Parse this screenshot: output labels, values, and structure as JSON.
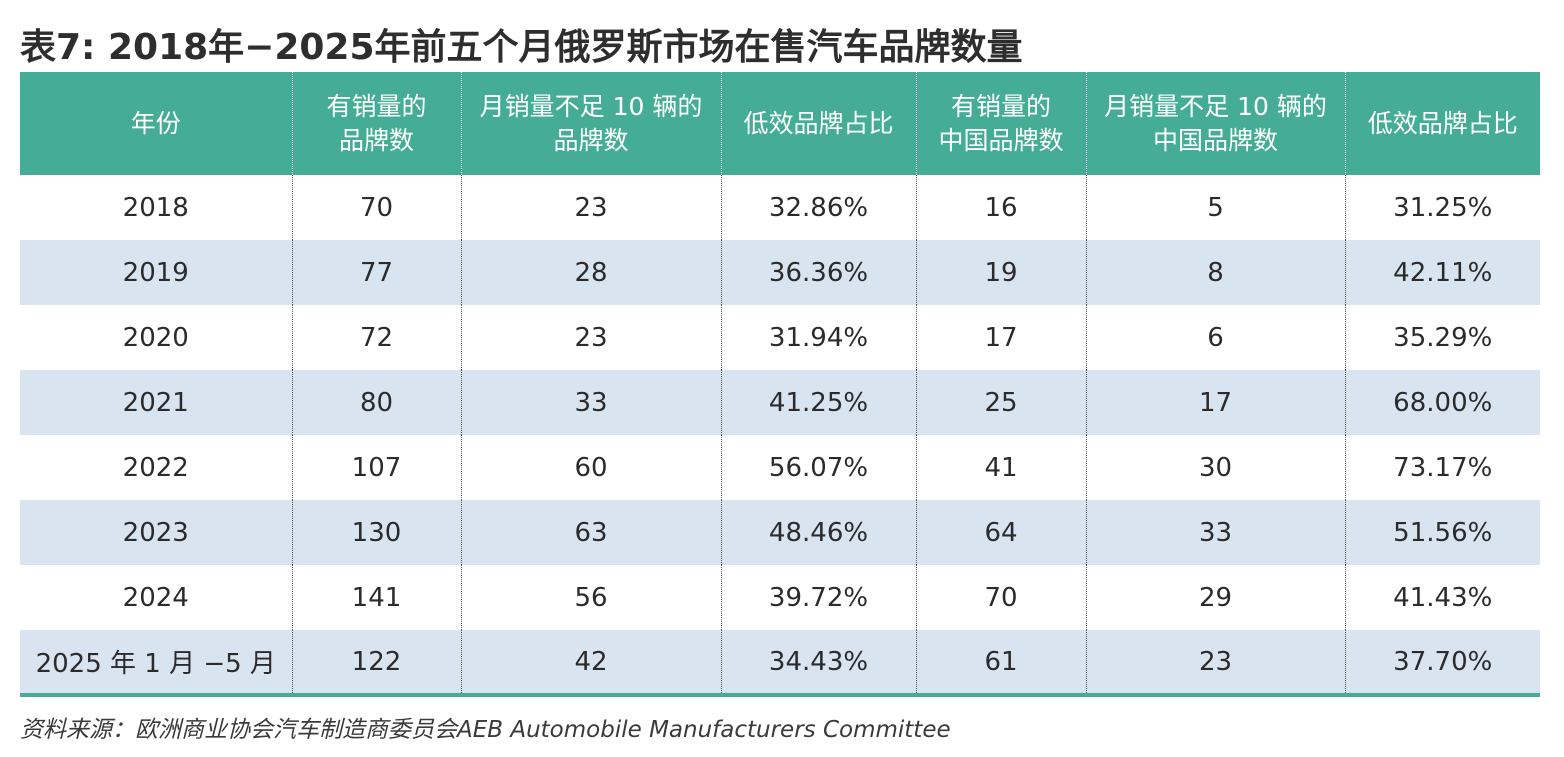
{
  "title": "表7: 2018年−2025年前五个月俄罗斯市场在售汽车品牌数量",
  "headers": [
    [
      "年份"
    ],
    [
      "有销量的",
      "品牌数"
    ],
    [
      "月销量不足 10 辆的",
      "品牌数"
    ],
    [
      "低效品牌占比"
    ],
    [
      "有销量的",
      "中国品牌数"
    ],
    [
      "月销量不足 10 辆的",
      "中国品牌数"
    ],
    [
      "低效品牌占比"
    ]
  ],
  "rows": [
    [
      "2018",
      "70",
      "23",
      "32.86%",
      "16",
      "5",
      "31.25%"
    ],
    [
      "2019",
      "77",
      "28",
      "36.36%",
      "19",
      "8",
      "42.11%"
    ],
    [
      "2020",
      "72",
      "23",
      "31.94%",
      "17",
      "6",
      "35.29%"
    ],
    [
      "2021",
      "80",
      "33",
      "41.25%",
      "25",
      "17",
      "68.00%"
    ],
    [
      "2022",
      "107",
      "60",
      "56.07%",
      "41",
      "30",
      "73.17%"
    ],
    [
      "2023",
      "130",
      "63",
      "48.46%",
      "64",
      "33",
      "51.56%"
    ],
    [
      "2024",
      "141",
      "56",
      "39.72%",
      "70",
      "29",
      "41.43%"
    ],
    [
      "2025 年 1 月 −5 月",
      "122",
      "42",
      "34.43%",
      "61",
      "23",
      "37.70%"
    ]
  ],
  "source": "资料来源：欧洲商业协会汽车制造商委员会AEB Automobile Manufacturers Committee",
  "colors": {
    "header_bg": "#45ad95",
    "stripe_bg": "#d8e4f0"
  }
}
